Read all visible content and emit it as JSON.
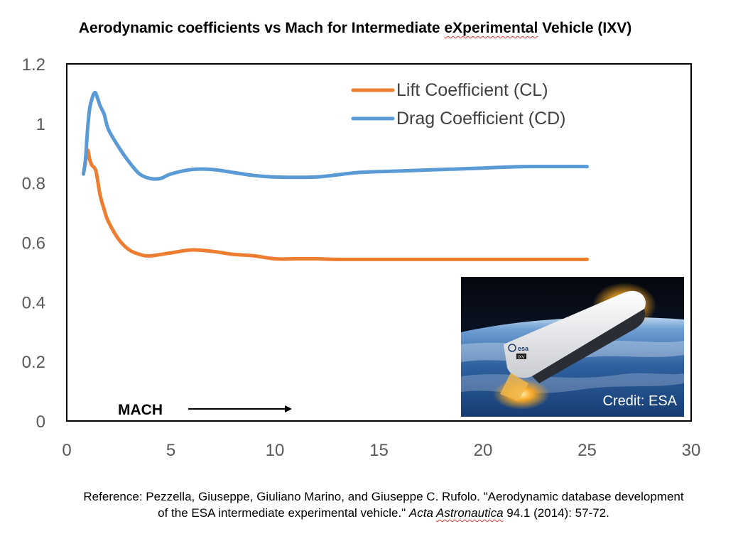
{
  "chart_data": {
    "type": "line",
    "title_parts": [
      "Aerodynamic coefficients vs Mach for Intermediate ",
      "eXperimental",
      " Vehicle (IXV)"
    ],
    "xlim": [
      0,
      30
    ],
    "ylim": [
      0,
      1.2
    ],
    "x_ticks": [
      "0",
      "5",
      "10",
      "15",
      "20",
      "25",
      "30"
    ],
    "y_ticks": [
      "0",
      "0.2",
      "0.4",
      "0.6",
      "0.8",
      "1",
      "1.2"
    ],
    "grid": false,
    "legend_position": "top-right",
    "series": [
      {
        "name": "Lift Coefficient (CL)",
        "color": "#ED7D31",
        "x": [
          0.8,
          0.9,
          1.0,
          1.1,
          1.2,
          1.4,
          1.6,
          1.8,
          2.0,
          2.5,
          3.0,
          3.5,
          4.0,
          5.0,
          6.0,
          7.0,
          8.0,
          9.0,
          10.0,
          11.0,
          12.0,
          13.0,
          15.0,
          17.0,
          20.0,
          22.0,
          25.0
        ],
        "y": [
          0.83,
          0.87,
          0.91,
          0.88,
          0.86,
          0.84,
          0.76,
          0.71,
          0.67,
          0.61,
          0.575,
          0.56,
          0.555,
          0.565,
          0.575,
          0.57,
          0.56,
          0.555,
          0.545,
          0.545,
          0.545,
          0.543,
          0.543,
          0.543,
          0.543,
          0.543,
          0.543
        ]
      },
      {
        "name": "Drag Coefficient (CD)",
        "color": "#5B9BD5",
        "x": [
          0.8,
          0.9,
          1.0,
          1.1,
          1.2,
          1.3,
          1.4,
          1.6,
          1.8,
          2.0,
          2.5,
          3.0,
          3.5,
          4.0,
          4.5,
          5.0,
          6.0,
          7.0,
          8.0,
          9.0,
          10.0,
          12.0,
          14.0,
          16.0,
          18.0,
          20.0,
          22.0,
          25.0
        ],
        "y": [
          0.83,
          0.88,
          0.98,
          1.05,
          1.08,
          1.1,
          1.1,
          1.06,
          1.03,
          0.98,
          0.92,
          0.87,
          0.83,
          0.815,
          0.815,
          0.83,
          0.845,
          0.845,
          0.835,
          0.825,
          0.82,
          0.82,
          0.835,
          0.84,
          0.845,
          0.85,
          0.855,
          0.855
        ]
      }
    ],
    "annotation": "MACH",
    "inset_credit": "Credit: ESA",
    "inset_logo": "esa",
    "inset_vehicle_label": "IXV"
  },
  "reference": {
    "line1": "Reference: Pezzella, Giuseppe, Giuliano Marino, and Giuseppe C. Rufolo. \"Aerodynamic database development",
    "line2_prefix": "of the ESA intermediate experimental vehicle.\" ",
    "line2_journal_a": "Acta ",
    "line2_journal_b": "Astronautica",
    "line2_suffix": " 94.1 (2014): 57-72."
  }
}
